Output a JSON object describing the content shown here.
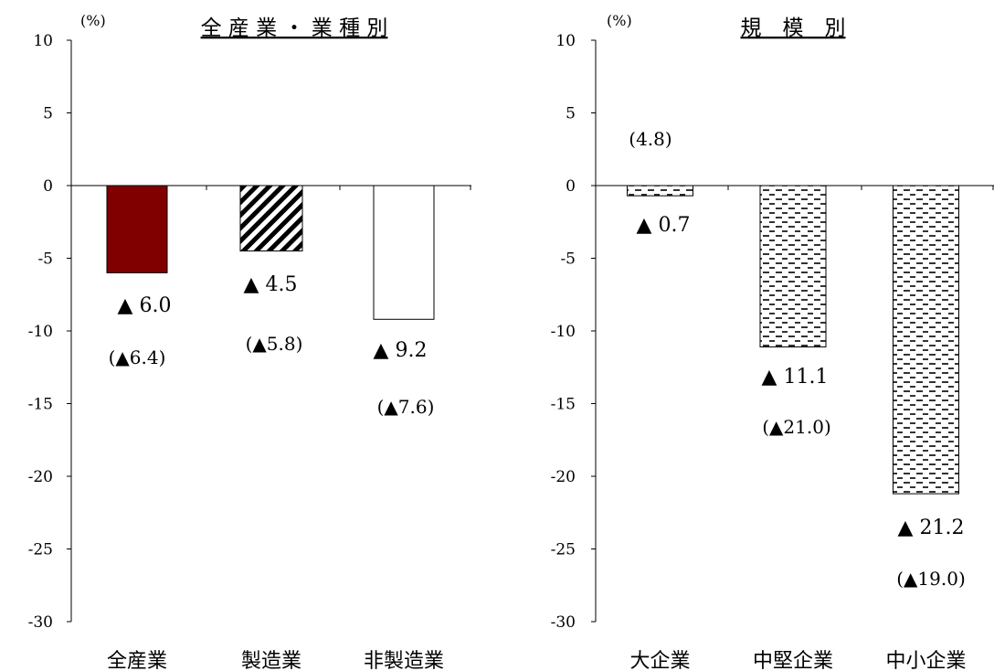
{
  "chart_data": [
    {
      "type": "bar",
      "title": "全 産 業 ・ 業 種 別",
      "unit": "(%)",
      "ylim": [
        -30,
        10
      ],
      "yticks": [
        10,
        5,
        0,
        -5,
        -10,
        -15,
        -20,
        -25,
        -30
      ],
      "categories": [
        "全産業",
        "製造業",
        "非製造業"
      ],
      "values": [
        -6.0,
        -4.5,
        -9.2
      ],
      "value_labels": [
        "▲ 6.0",
        "▲ 4.5",
        "▲ 9.2"
      ],
      "previous_labels": [
        "(▲6.4)",
        "(▲5.8)",
        "(▲7.6)"
      ],
      "fills": [
        "solid-darkred",
        "diagonal-hatch",
        "white"
      ],
      "colors": {
        "solid": "#800000"
      },
      "grid": false
    },
    {
      "type": "bar",
      "title": "規　模　別",
      "unit": "(%)",
      "ylim": [
        -30,
        10
      ],
      "yticks": [
        10,
        5,
        0,
        -5,
        -10,
        -15,
        -20,
        -25,
        -30
      ],
      "categories": [
        "大企業",
        "中堅企業",
        "中小企業"
      ],
      "values": [
        -0.7,
        -11.1,
        -21.2
      ],
      "value_labels": [
        "▲ 0.7",
        "▲ 11.1",
        "▲ 21.2"
      ],
      "previous_labels": [
        "(4.8)",
        "(▲21.0)",
        "(▲19.0)"
      ],
      "fills": [
        "dash-pattern",
        "dash-pattern",
        "dash-pattern"
      ],
      "grid": false
    }
  ]
}
